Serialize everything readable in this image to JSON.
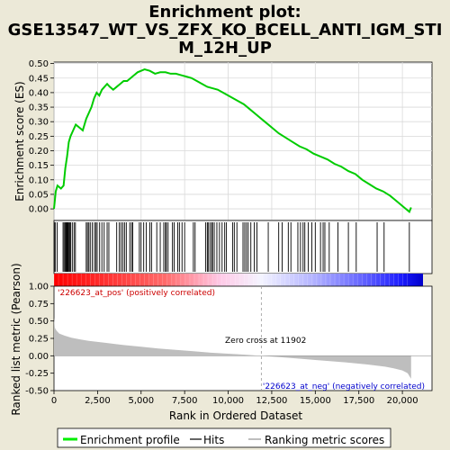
{
  "chart_data": {
    "type": "line",
    "title_line1": "Enrichment plot:",
    "title_line2": "GSE13547_WT_VS_ZFX_KO_BCELL_ANTI_IGM_STI",
    "title_line3": "M_12H_UP",
    "es_panel": {
      "ylabel": "Enrichment score (ES)",
      "ylim": [
        -0.04,
        0.505
      ],
      "yticks": [
        "0.00",
        "0.05",
        "0.10",
        "0.15",
        "0.20",
        "0.25",
        "0.30",
        "0.35",
        "0.40",
        "0.45",
        "0.50"
      ],
      "ytick_values": [
        0.0,
        0.05,
        0.1,
        0.15,
        0.2,
        0.25,
        0.3,
        0.35,
        0.4,
        0.45,
        0.5
      ],
      "grid": true,
      "line_color": "#00cc00",
      "x": [
        0,
        100,
        200,
        400,
        550,
        650,
        750,
        850,
        950,
        1100,
        1250,
        1450,
        1650,
        1850,
        2000,
        2150,
        2300,
        2450,
        2600,
        2750,
        2900,
        3050,
        3200,
        3400,
        3600,
        3800,
        4000,
        4200,
        4400,
        4600,
        4800,
        5000,
        5200,
        5500,
        5800,
        6100,
        6400,
        6700,
        7000,
        7300,
        7600,
        7900,
        8200,
        8500,
        8800,
        9100,
        9400,
        9700,
        10000,
        10300,
        10600,
        10900,
        11200,
        11500,
        11800,
        12100,
        12500,
        12900,
        13300,
        13700,
        14100,
        14500,
        14900,
        15300,
        15700,
        16100,
        16500,
        16900,
        17300,
        17700,
        18100,
        18500,
        18900,
        19300,
        19700,
        20100,
        20400,
        20500
      ],
      "y": [
        0.0,
        0.06,
        0.08,
        0.07,
        0.08,
        0.14,
        0.18,
        0.23,
        0.25,
        0.27,
        0.29,
        0.28,
        0.27,
        0.31,
        0.33,
        0.35,
        0.38,
        0.4,
        0.39,
        0.41,
        0.42,
        0.43,
        0.42,
        0.41,
        0.42,
        0.43,
        0.44,
        0.44,
        0.45,
        0.46,
        0.47,
        0.475,
        0.48,
        0.475,
        0.465,
        0.47,
        0.47,
        0.465,
        0.465,
        0.46,
        0.455,
        0.45,
        0.44,
        0.43,
        0.42,
        0.415,
        0.41,
        0.4,
        0.39,
        0.38,
        0.37,
        0.36,
        0.345,
        0.33,
        0.315,
        0.3,
        0.28,
        0.26,
        0.245,
        0.23,
        0.215,
        0.205,
        0.19,
        0.18,
        0.17,
        0.155,
        0.145,
        0.13,
        0.12,
        0.1,
        0.085,
        0.07,
        0.06,
        0.045,
        0.025,
        0.005,
        -0.01,
        0.005
      ]
    },
    "hits": [
      20,
      70,
      180,
      520,
      580,
      640,
      690,
      730,
      770,
      810,
      860,
      900,
      960,
      1050,
      1150,
      1230,
      1850,
      1920,
      2000,
      2080,
      2200,
      2320,
      2400,
      2480,
      2620,
      2750,
      2880,
      3050,
      3150,
      3600,
      3750,
      3850,
      3950,
      4050,
      4150,
      4350,
      4450,
      4520,
      4900,
      5000,
      5150,
      5300,
      5500,
      5600,
      5900,
      6100,
      6300,
      6400,
      6450,
      6550,
      6800,
      6900,
      7100,
      7200,
      7350,
      7500,
      8000,
      8100,
      8700,
      8800,
      8850,
      8950,
      9050,
      9100,
      9200,
      9350,
      9500,
      9650,
      9800,
      9900,
      10250,
      10350,
      10500,
      10850,
      10950,
      11050,
      11150,
      11300,
      11500,
      11650,
      12300,
      12900,
      13100,
      13450,
      13600,
      14000,
      14150,
      14300,
      14400,
      14600,
      14800,
      15000,
      15300,
      15450,
      15550,
      15800,
      16300,
      16900,
      17350,
      18550,
      18950,
      20400
    ],
    "metric_panel": {
      "ylabel": "Ranked list metric (Pearson)",
      "ylim": [
        -0.5,
        1.0
      ],
      "yticks": [
        "-0.50",
        "-0.25",
        "0.00",
        "0.25",
        "0.50",
        "0.75",
        "1.00"
      ],
      "ytick_values": [
        -0.5,
        -0.25,
        0.0,
        0.25,
        0.5,
        0.75,
        1.0
      ],
      "fill_color": "#bebebe",
      "x": [
        0,
        50,
        150,
        300,
        600,
        1000,
        1500,
        2000,
        3000,
        4000,
        5000,
        6000,
        7000,
        8000,
        9000,
        10000,
        11000,
        11902,
        13000,
        14000,
        15000,
        16000,
        17000,
        18000,
        19000,
        19500,
        20000,
        20300,
        20500
      ],
      "y": [
        0.55,
        0.4,
        0.36,
        0.32,
        0.29,
        0.26,
        0.235,
        0.215,
        0.185,
        0.155,
        0.13,
        0.105,
        0.085,
        0.065,
        0.045,
        0.03,
        0.015,
        0.0,
        -0.02,
        -0.04,
        -0.06,
        -0.08,
        -0.1,
        -0.125,
        -0.155,
        -0.18,
        -0.21,
        -0.25,
        -0.33
      ],
      "pos_label": "'226623_at_pos' (positively correlated)",
      "neg_label": "'226623_at_neg' (negatively correlated)",
      "zero_cross_label": "Zero cross at 11902",
      "zero_cross": 11902
    },
    "xlabel": "Rank in Ordered Dataset",
    "xlim": [
      0,
      21700
    ],
    "xticks": [
      "0",
      "2,500",
      "5,000",
      "7,500",
      "10,000",
      "12,500",
      "15,000",
      "17,500",
      "20,000"
    ],
    "xtick_values": [
      0,
      2500,
      5000,
      7500,
      10000,
      12500,
      15000,
      17500,
      20000
    ],
    "n_genes": 20500,
    "legend": {
      "placement": "bottom",
      "entries": [
        {
          "label": "Enrichment profile",
          "color": "#00ee00"
        },
        {
          "label": "Hits",
          "color": "#000000"
        },
        {
          "label": "Ranking metric scores",
          "color": "#bebebe"
        }
      ]
    }
  }
}
